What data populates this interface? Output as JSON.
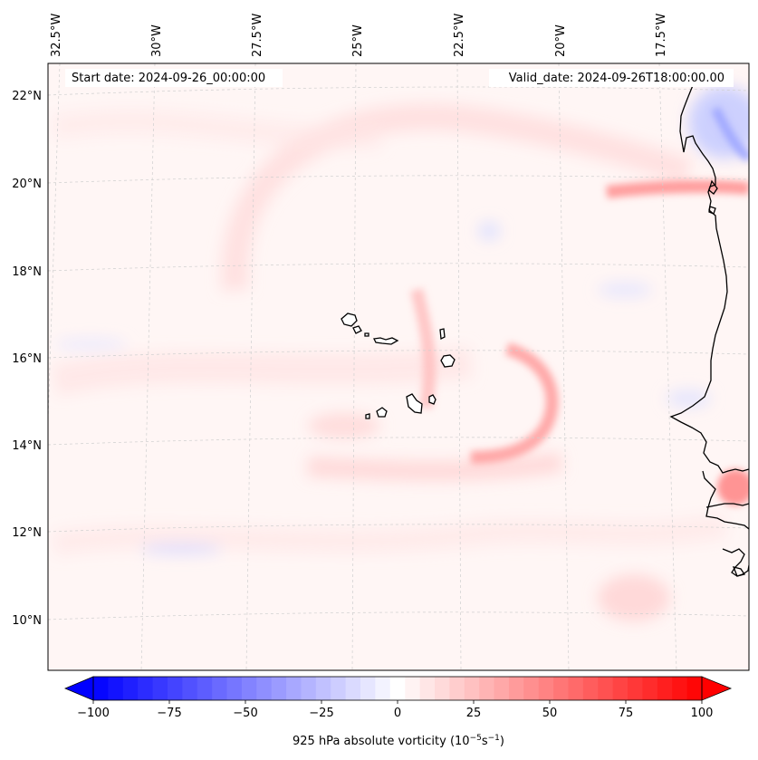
{
  "map": {
    "start_date_text": "Start date: 2024-09-26_00:00:00",
    "valid_date_text": "Valid_date: 2024-09-26T18:00:00.00",
    "longitude_labels": [
      "32.5°W",
      "30°W",
      "27.5°W",
      "25°W",
      "22.5°W",
      "20°W",
      "17.5°W"
    ],
    "latitude_labels": [
      "22°N",
      "20°N",
      "18°N",
      "16°N",
      "14°N",
      "12°N",
      "10°N"
    ],
    "field_variable": "925 hPa absolute vorticity",
    "colors": {
      "negative_max": "#0000ff",
      "neutral": "#ffffff",
      "positive_max": "#ff0000",
      "coastline": "#000000",
      "gridline": "#c8c8c8"
    }
  },
  "colorbar": {
    "label_prefix": "925 hPa absolute vorticity (10",
    "label_exp1": "−5",
    "label_mid": "s",
    "label_exp2": "−1",
    "label_suffix": ")",
    "range": [
      -100,
      100
    ],
    "levels": 41,
    "ticks": [
      -100,
      -75,
      -50,
      -25,
      0,
      25,
      50,
      75,
      100
    ],
    "tick_labels": [
      "−100",
      "−75",
      "−50",
      "−25",
      "0",
      "25",
      "50",
      "75",
      "100"
    ],
    "extend": "both"
  },
  "chart_data": {
    "type": "heatmap",
    "title": "",
    "variable": "925 hPa absolute vorticity",
    "units": "10^-5 s^-1",
    "lon_range": [
      -33,
      -15
    ],
    "lat_range": [
      9,
      22.8
    ],
    "colorbar_range": [
      -100,
      100
    ],
    "features": [
      {
        "name": "vorticity arc near Cape Verde",
        "lon": -19.5,
        "lat": 15.2,
        "value": 40
      },
      {
        "name": "coastal maximum near Cap Blanc",
        "lon": -16.2,
        "lat": 19.9,
        "value": 55
      },
      {
        "name": "Senegal / Gambia coast maximum",
        "lon": -15.2,
        "lat": 13.0,
        "value": 45
      },
      {
        "name": "weak negative band",
        "lon": -30,
        "lat": 11.5,
        "value": -20
      },
      {
        "name": "negative area along Mauritanian coast",
        "lon": -16,
        "lat": 21.5,
        "value": -35
      }
    ]
  }
}
